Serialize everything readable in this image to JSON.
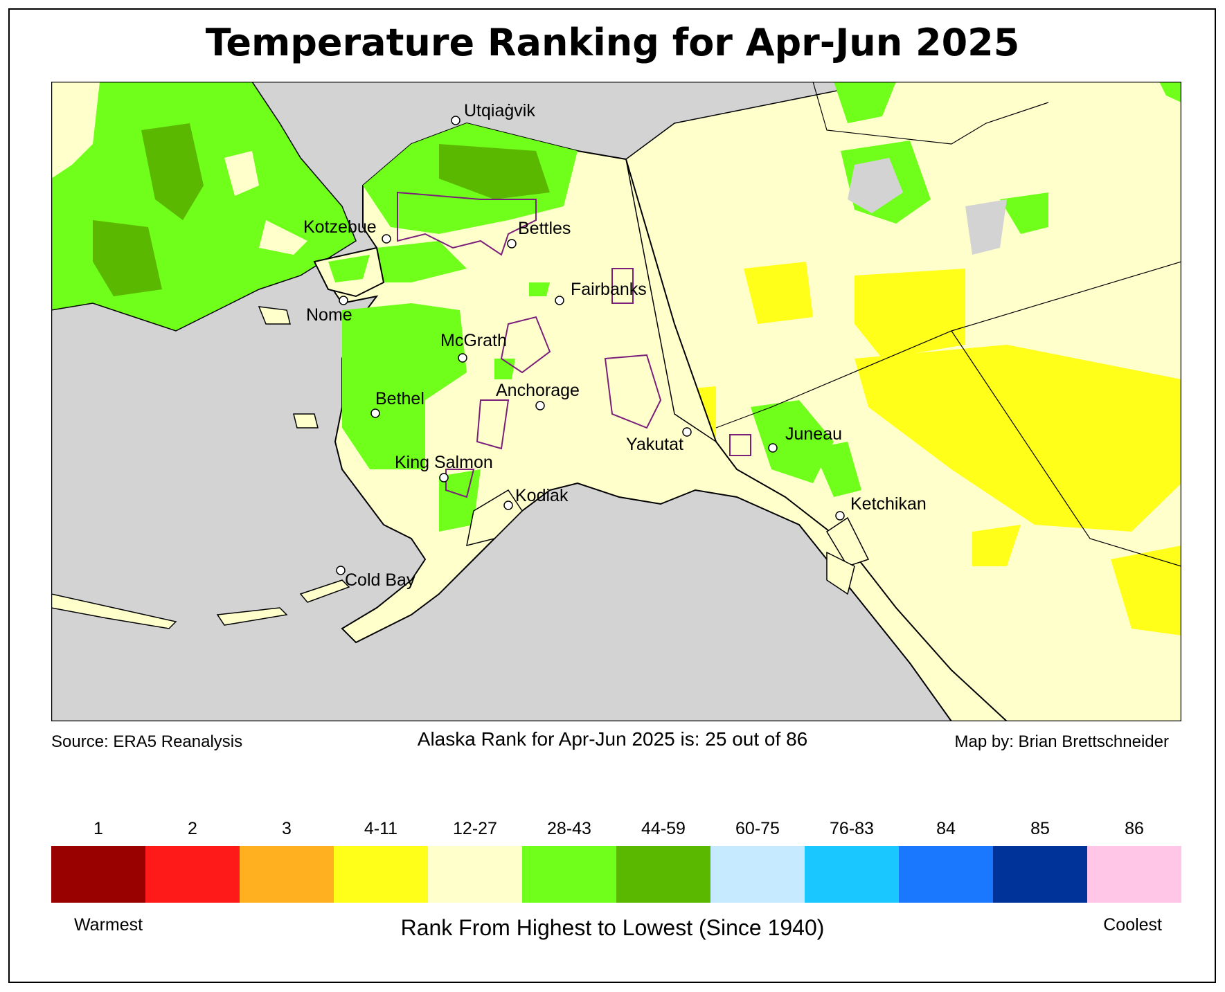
{
  "title": "Temperature Ranking for Apr-Jun 2025",
  "source": "Source: ERA5 Reanalysis",
  "summary": "Alaska Rank for Apr-Jun 2025 is: 25 out of 86",
  "credit": "Map by: Brian Brettschneider",
  "legend": {
    "caption_left": "Warmest",
    "caption_right": "Coolest",
    "axis_label": "Rank From Highest to Lowest (Since 1940)",
    "classes": [
      {
        "label": "1",
        "color": "#990000"
      },
      {
        "label": "2",
        "color": "#ff1a1a"
      },
      {
        "label": "3",
        "color": "#ffb020"
      },
      {
        "label": "4-11",
        "color": "#ffff1a"
      },
      {
        "label": "12-27",
        "color": "#ffffcc"
      },
      {
        "label": "28-43",
        "color": "#6fff1a"
      },
      {
        "label": "44-59",
        "color": "#5ab800"
      },
      {
        "label": "60-75",
        "color": "#c6eaff"
      },
      {
        "label": "76-83",
        "color": "#1ac8ff"
      },
      {
        "label": "84",
        "color": "#1a78ff"
      },
      {
        "label": "85",
        "color": "#003399"
      },
      {
        "label": "86",
        "color": "#ffc6e8"
      }
    ]
  },
  "map": {
    "ocean_color": "#d3d3d3",
    "boundary_color": "#7a1f7a",
    "cities": [
      {
        "name": "Utqiaġvik"
      },
      {
        "name": "Kotzebue"
      },
      {
        "name": "Bettles"
      },
      {
        "name": "Fairbanks"
      },
      {
        "name": "Nome"
      },
      {
        "name": "McGrath"
      },
      {
        "name": "Bethel"
      },
      {
        "name": "Anchorage"
      },
      {
        "name": "Yakutat"
      },
      {
        "name": "Juneau"
      },
      {
        "name": "King Salmon"
      },
      {
        "name": "Kodiak"
      },
      {
        "name": "Ketchikan"
      },
      {
        "name": "Cold Bay"
      }
    ]
  }
}
